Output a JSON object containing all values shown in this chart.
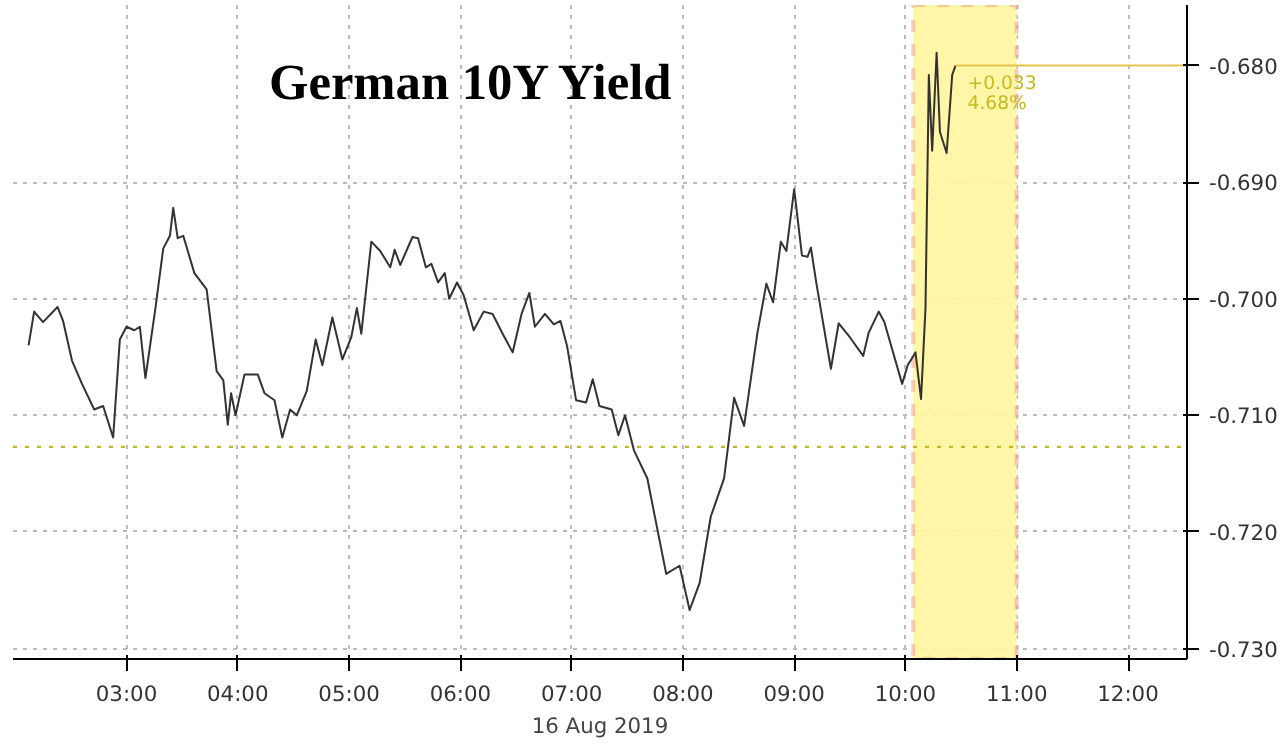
{
  "chart_data": {
    "type": "line",
    "title": "German 10Y Yield",
    "xlabel": "16 Aug 2019",
    "x": [
      2.12,
      2.17,
      2.25,
      2.38,
      2.43,
      2.51,
      2.6,
      2.71,
      2.79,
      2.88,
      2.94,
      3.0,
      3.07,
      3.12,
      3.17,
      3.26,
      3.33,
      3.39,
      3.42,
      3.46,
      3.51,
      3.61,
      3.72,
      3.81,
      3.87,
      3.91,
      3.94,
      3.98,
      4.06,
      4.18,
      4.24,
      4.33,
      4.4,
      4.47,
      4.53,
      4.62,
      4.7,
      4.76,
      4.85,
      4.94,
      5.02,
      5.07,
      5.11,
      5.2,
      5.28,
      5.37,
      5.41,
      5.46,
      5.57,
      5.62,
      5.69,
      5.74,
      5.8,
      5.86,
      5.9,
      5.97,
      6.03,
      6.12,
      6.21,
      6.29,
      6.38,
      6.47,
      6.55,
      6.62,
      6.67,
      6.76,
      6.84,
      6.9,
      6.96,
      7.04,
      7.13,
      7.19,
      7.25,
      7.36,
      7.42,
      7.48,
      7.56,
      7.68,
      7.85,
      7.97,
      8.06,
      8.15,
      8.25,
      8.37,
      8.46,
      8.55,
      8.67,
      8.75,
      8.81,
      8.88,
      8.93,
      9.0,
      9.07,
      9.12,
      9.15,
      9.2,
      9.33,
      9.4,
      9.5,
      9.62,
      9.67,
      9.76,
      9.81,
      9.97,
      10.02,
      10.09,
      10.14,
      10.18,
      10.21,
      10.24,
      10.28,
      10.31,
      10.37,
      10.42,
      10.45
    ],
    "series": [
      {
        "color": "#333333",
        "values": [
          -0.704,
          -0.7011,
          -0.702,
          -0.7007,
          -0.7019,
          -0.7053,
          -0.7073,
          -0.7095,
          -0.7092,
          -0.7119,
          -0.7035,
          -0.7024,
          -0.7027,
          -0.7024,
          -0.7068,
          -0.7008,
          -0.6957,
          -0.6946,
          -0.6922,
          -0.6948,
          -0.6946,
          -0.6978,
          -0.6992,
          -0.7062,
          -0.707,
          -0.7108,
          -0.7081,
          -0.71,
          -0.7065,
          -0.7065,
          -0.7081,
          -0.7087,
          -0.7119,
          -0.7095,
          -0.71,
          -0.7079,
          -0.7035,
          -0.7057,
          -0.7016,
          -0.7052,
          -0.7033,
          -0.7008,
          -0.703,
          -0.6951,
          -0.6959,
          -0.6973,
          -0.6958,
          -0.6971,
          -0.6947,
          -0.6948,
          -0.6973,
          -0.697,
          -0.6986,
          -0.6978,
          -0.7,
          -0.6986,
          -0.6997,
          -0.7027,
          -0.7011,
          -0.7013,
          -0.703,
          -0.7046,
          -0.7013,
          -0.6995,
          -0.7024,
          -0.7013,
          -0.7022,
          -0.7019,
          -0.7041,
          -0.7087,
          -0.7089,
          -0.7069,
          -0.7092,
          -0.7095,
          -0.7117,
          -0.71,
          -0.713,
          -0.7154,
          -0.7236,
          -0.7229,
          -0.7267,
          -0.7244,
          -0.7187,
          -0.7154,
          -0.7085,
          -0.7109,
          -0.7029,
          -0.6987,
          -0.7003,
          -0.6951,
          -0.6959,
          -0.6906,
          -0.6963,
          -0.6964,
          -0.6956,
          -0.6987,
          -0.706,
          -0.7021,
          -0.7033,
          -0.7049,
          -0.7029,
          -0.7011,
          -0.702,
          -0.7073,
          -0.7057,
          -0.7046,
          -0.7086,
          -0.7008,
          -0.6808,
          -0.6873,
          -0.6789,
          -0.6857,
          -0.6875,
          -0.6808,
          -0.68
        ]
      }
    ],
    "xlim": [
      1.98,
      12.53
    ],
    "xticks": [
      {
        "value": 3,
        "label": "03:00"
      },
      {
        "value": 4,
        "label": "04:00"
      },
      {
        "value": 5,
        "label": "05:00"
      },
      {
        "value": 6,
        "label": "06:00"
      },
      {
        "value": 7,
        "label": "07:00"
      },
      {
        "value": 8,
        "label": "08:00"
      },
      {
        "value": 9,
        "label": "09:00"
      },
      {
        "value": 10,
        "label": "10:00"
      },
      {
        "value": 11,
        "label": "11:00"
      },
      {
        "value": 12,
        "label": "12:00"
      }
    ],
    "ylim": [
      -0.7309,
      -0.6748
    ],
    "yticks": [
      {
        "value": -0.69,
        "label": "-0.690"
      },
      {
        "value": -0.7,
        "label": "-0.700"
      },
      {
        "value": -0.71,
        "label": "-0.710"
      },
      {
        "value": -0.72,
        "label": "-0.720"
      },
      {
        "value": -0.73,
        "label": "-0.730"
      }
    ],
    "ref_lines": [
      {
        "axis": "y",
        "value": -0.68,
        "label": "-0.680",
        "color": "#e6c34a",
        "line_style": "solid"
      },
      {
        "axis": "y",
        "value": -0.7127,
        "color": "#c8b820",
        "line_style": "dotted"
      }
    ],
    "bands": [
      {
        "axis": "x",
        "from": 10.07,
        "to": 11.0,
        "color": "#fff59d"
      }
    ],
    "annotations": [
      "+0.033",
      "4.68%"
    ],
    "grid": true,
    "line_style": "solid",
    "marker": "none"
  }
}
